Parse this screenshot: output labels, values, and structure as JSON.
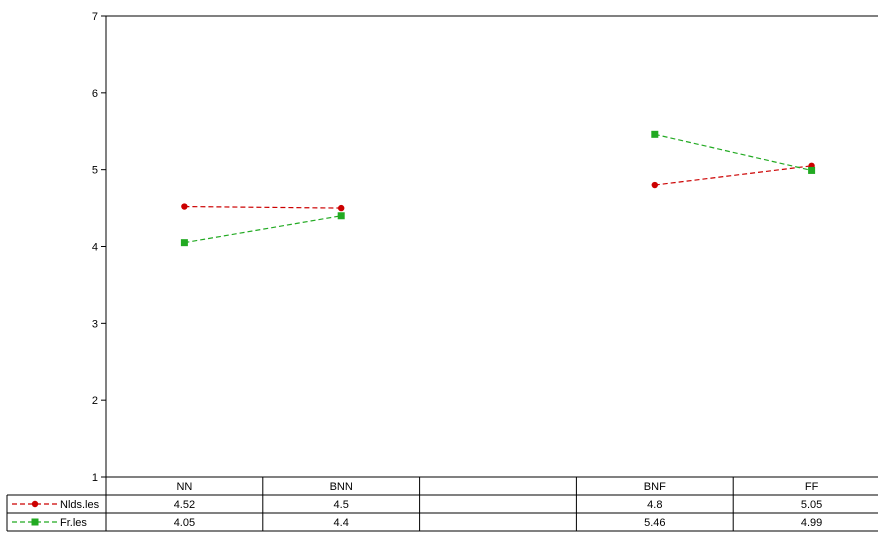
{
  "chart_data": {
    "type": "line",
    "categories": [
      "NN",
      "BNN",
      "",
      "BNF",
      "FF"
    ],
    "ylim": [
      1,
      7
    ],
    "yticks": [
      1,
      2,
      3,
      4,
      5,
      6,
      7
    ],
    "grid": false,
    "legend": "data-table",
    "series": [
      {
        "name": "Nlds.les",
        "color": "#cc0000",
        "marker": "circle",
        "values": [
          4.52,
          4.5,
          null,
          4.8,
          5.05
        ],
        "labels": [
          "4.52",
          "4.5",
          "",
          "4.8",
          "5.05"
        ]
      },
      {
        "name": "Fr.les",
        "color": "#22aa22",
        "marker": "square",
        "values": [
          4.05,
          4.4,
          null,
          5.46,
          4.99
        ],
        "labels": [
          "4.05",
          "4.4",
          "",
          "5.46",
          "4.99"
        ]
      }
    ]
  }
}
